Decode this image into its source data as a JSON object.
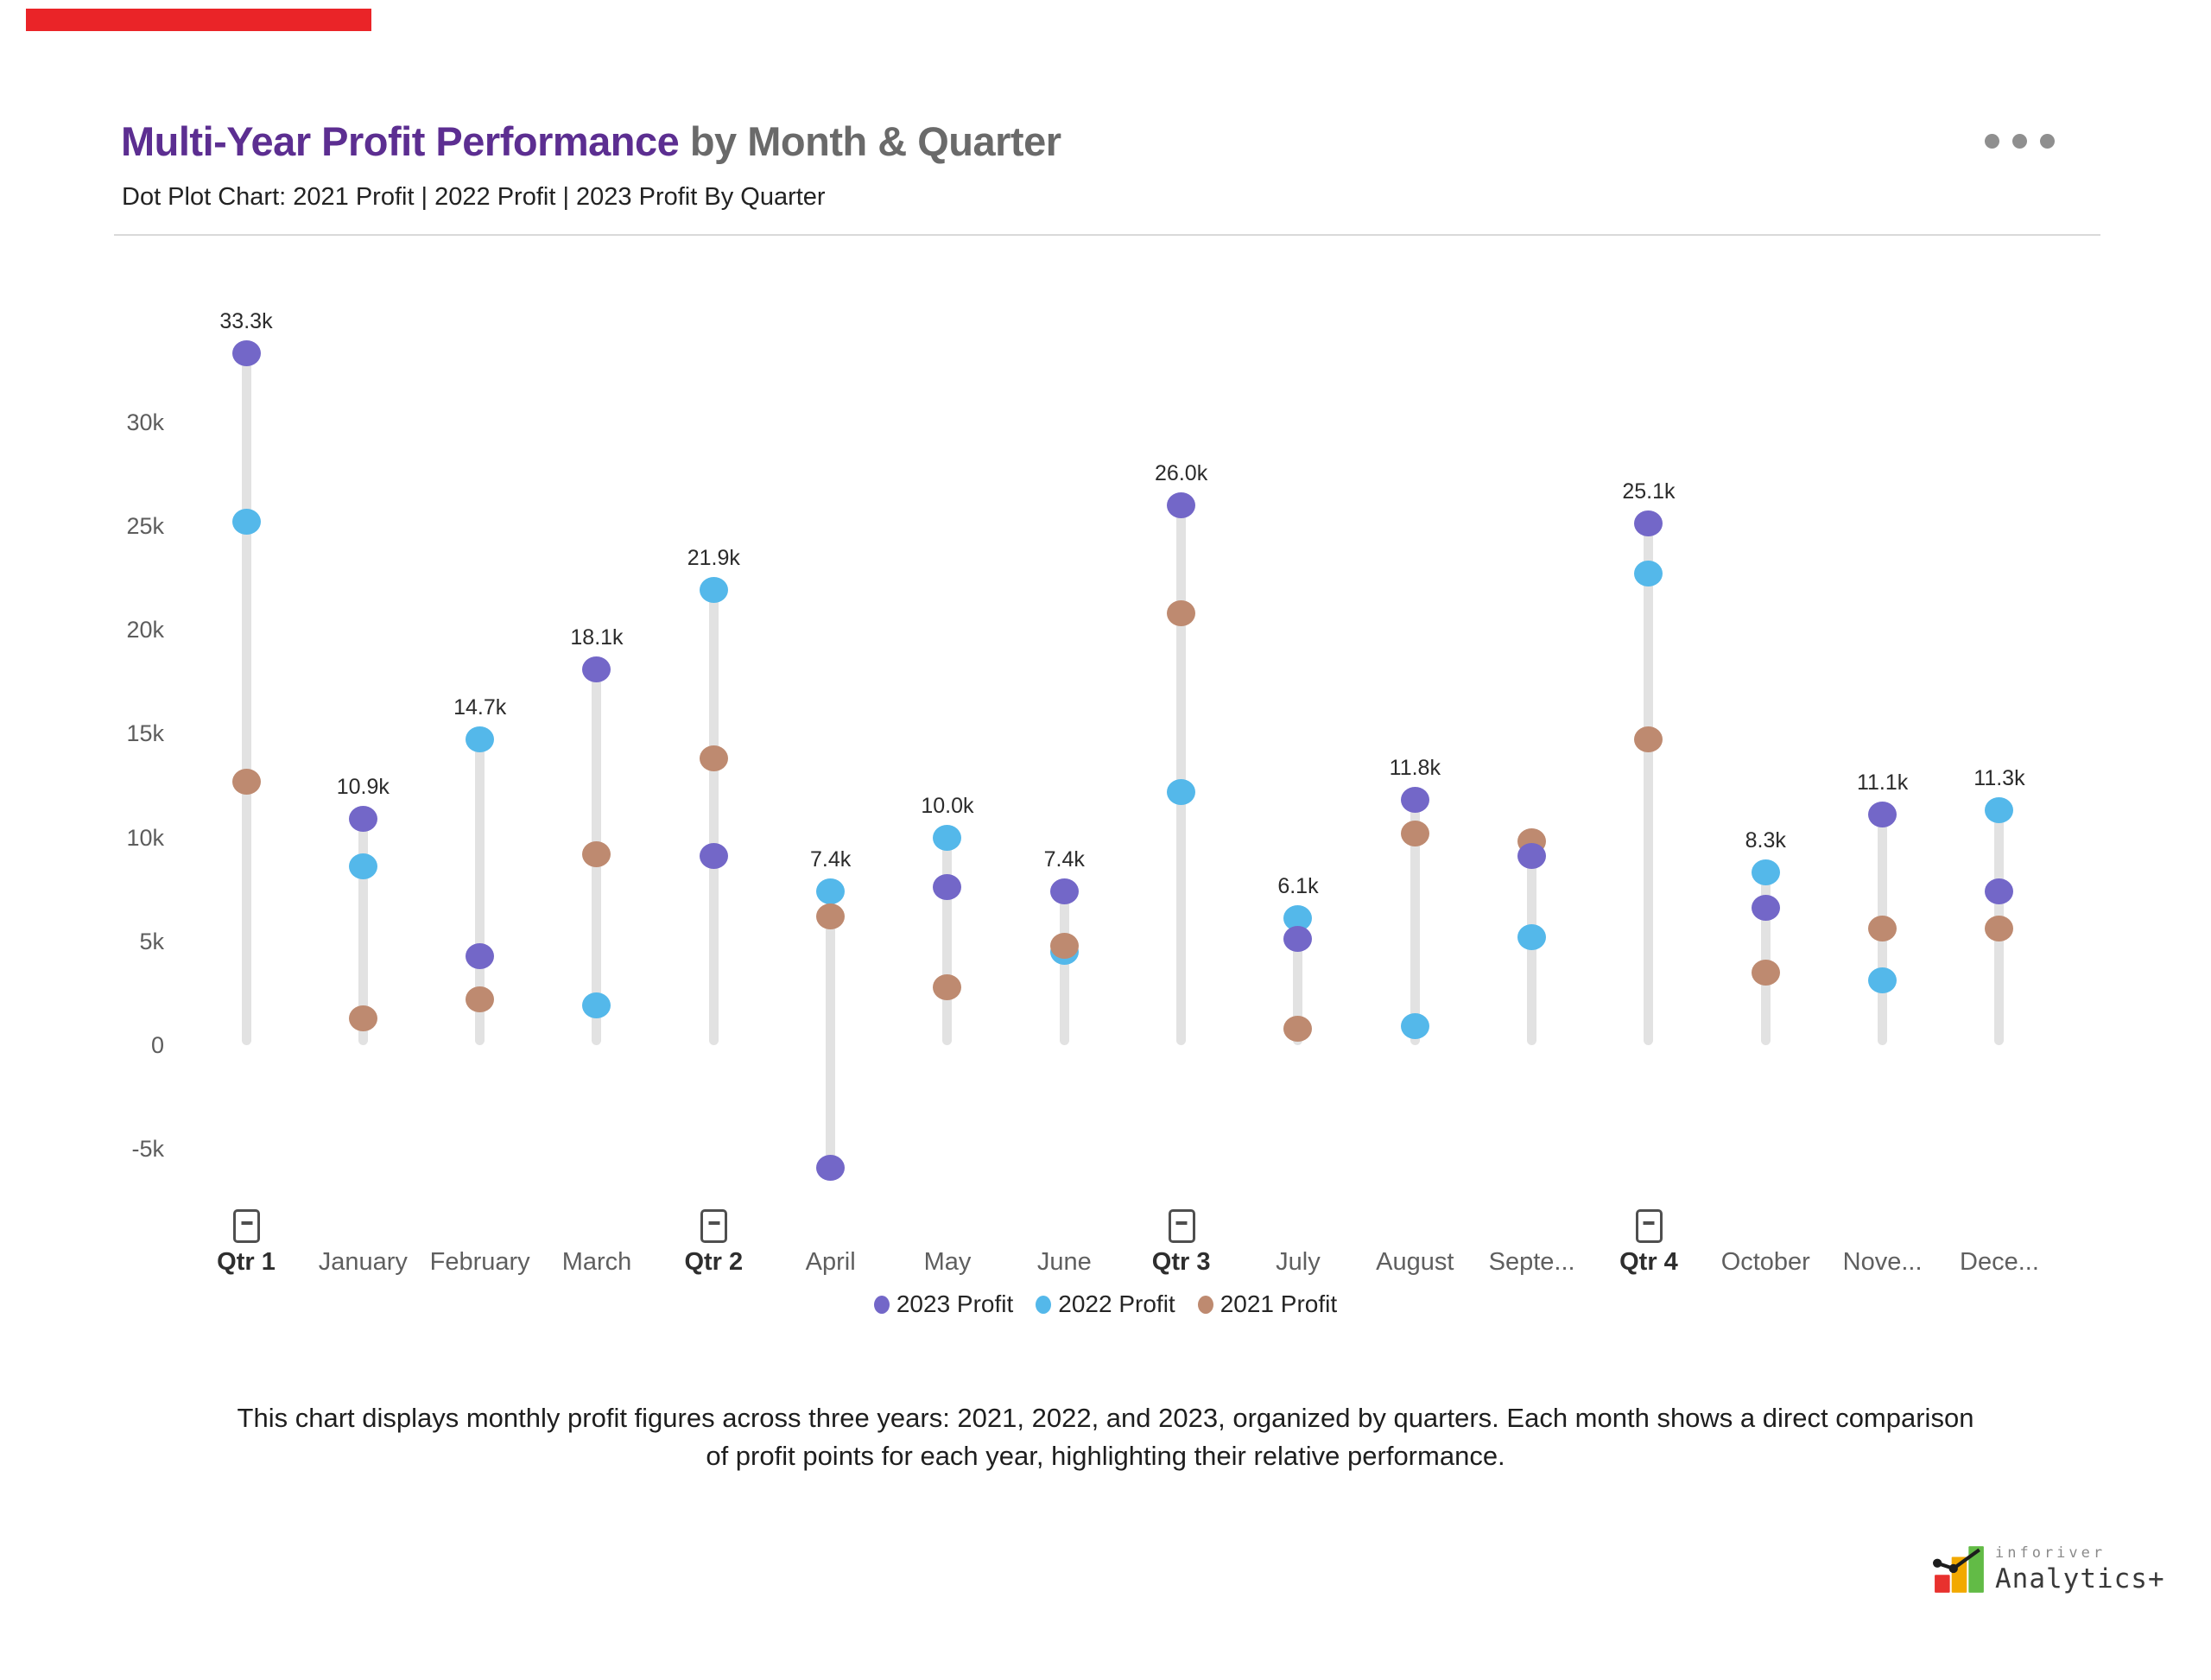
{
  "accent_bar": {
    "color": "#ea2428"
  },
  "header": {
    "title_highlight": "Multi-Year Profit Performance",
    "title_rest": " by Month & Quarter",
    "title_highlight_color": "#5c2e91",
    "title_rest_color": "#6a6a6a",
    "subtitle": "Dot Plot Chart: 2021 Profit | 2022 Profit | 2023 Profit By Quarter"
  },
  "chart_data": {
    "type": "scatter",
    "subtype": "dot-plot-lollipop",
    "title": "Multi-Year Profit Performance by Month & Quarter",
    "xlabel": "",
    "ylabel": "",
    "units": "k",
    "grid": false,
    "legend_position": "bottom-center",
    "stick_color": "#e2e2e2",
    "ylim": [
      -7.5,
      35
    ],
    "categories": [
      "Qtr 1",
      "January",
      "February",
      "March",
      "Qtr 2",
      "April",
      "May",
      "June",
      "Qtr 3",
      "July",
      "August",
      "Septe...",
      "Qtr 4",
      "October",
      "Nove...",
      "Dece..."
    ],
    "is_quarter": [
      true,
      false,
      false,
      false,
      true,
      false,
      false,
      false,
      true,
      false,
      false,
      false,
      true,
      false,
      false,
      false
    ],
    "series": [
      {
        "name": "2023 Profit",
        "color": "#7367c8",
        "values": [
          33.3,
          10.9,
          4.3,
          18.1,
          9.1,
          -5.9,
          7.6,
          7.4,
          26.0,
          5.1,
          11.8,
          9.1,
          25.1,
          6.6,
          11.1,
          7.4
        ]
      },
      {
        "name": "2022 Profit",
        "color": "#54b8ea",
        "values": [
          25.2,
          8.6,
          14.7,
          1.9,
          21.9,
          7.4,
          10.0,
          4.5,
          12.2,
          6.1,
          0.9,
          5.2,
          22.7,
          8.3,
          3.1,
          11.3
        ]
      },
      {
        "name": "2021 Profit",
        "color": "#be8a70",
        "values": [
          12.7,
          1.3,
          2.2,
          9.2,
          13.8,
          6.2,
          2.8,
          4.8,
          20.8,
          0.8,
          10.2,
          9.8,
          14.7,
          3.5,
          5.6,
          5.6
        ]
      }
    ],
    "data_labels": [
      "33.3k",
      "10.9k",
      "14.7k",
      "18.1k",
      "21.9k",
      "7.4k",
      "10.0k",
      "7.4k",
      "26.0k",
      "6.1k",
      "11.8k",
      null,
      "25.1k",
      "8.3k",
      "11.1k",
      "11.3k"
    ],
    "y_ticks": [
      {
        "label": "30k",
        "value": 30
      },
      {
        "label": "25k",
        "value": 25
      },
      {
        "label": "20k",
        "value": 20
      },
      {
        "label": "15k",
        "value": 15
      },
      {
        "label": "10k",
        "value": 10
      },
      {
        "label": "5k",
        "value": 5
      },
      {
        "label": "0",
        "value": 0
      },
      {
        "label": "-5k",
        "value": -5
      }
    ],
    "collapse_icon": "minus-in-box"
  },
  "legend": {
    "items": [
      {
        "label": "2023 Profit",
        "color": "#7367c8"
      },
      {
        "label": "2022 Profit",
        "color": "#54b8ea"
      },
      {
        "label": "2021 Profit",
        "color": "#be8a70"
      }
    ]
  },
  "description": {
    "line1": "This chart displays monthly profit figures across three years: 2021, 2022, and 2023, organized by quarters. Each month shows a direct comparison",
    "line2": "of profit points for each year, highlighting their relative performance."
  },
  "footer_logo": {
    "brand_top": "inforiver",
    "brand_bottom": "Analytics+",
    "bar_colors": [
      "#e8312e",
      "#f2a900",
      "#62bb46"
    ]
  }
}
